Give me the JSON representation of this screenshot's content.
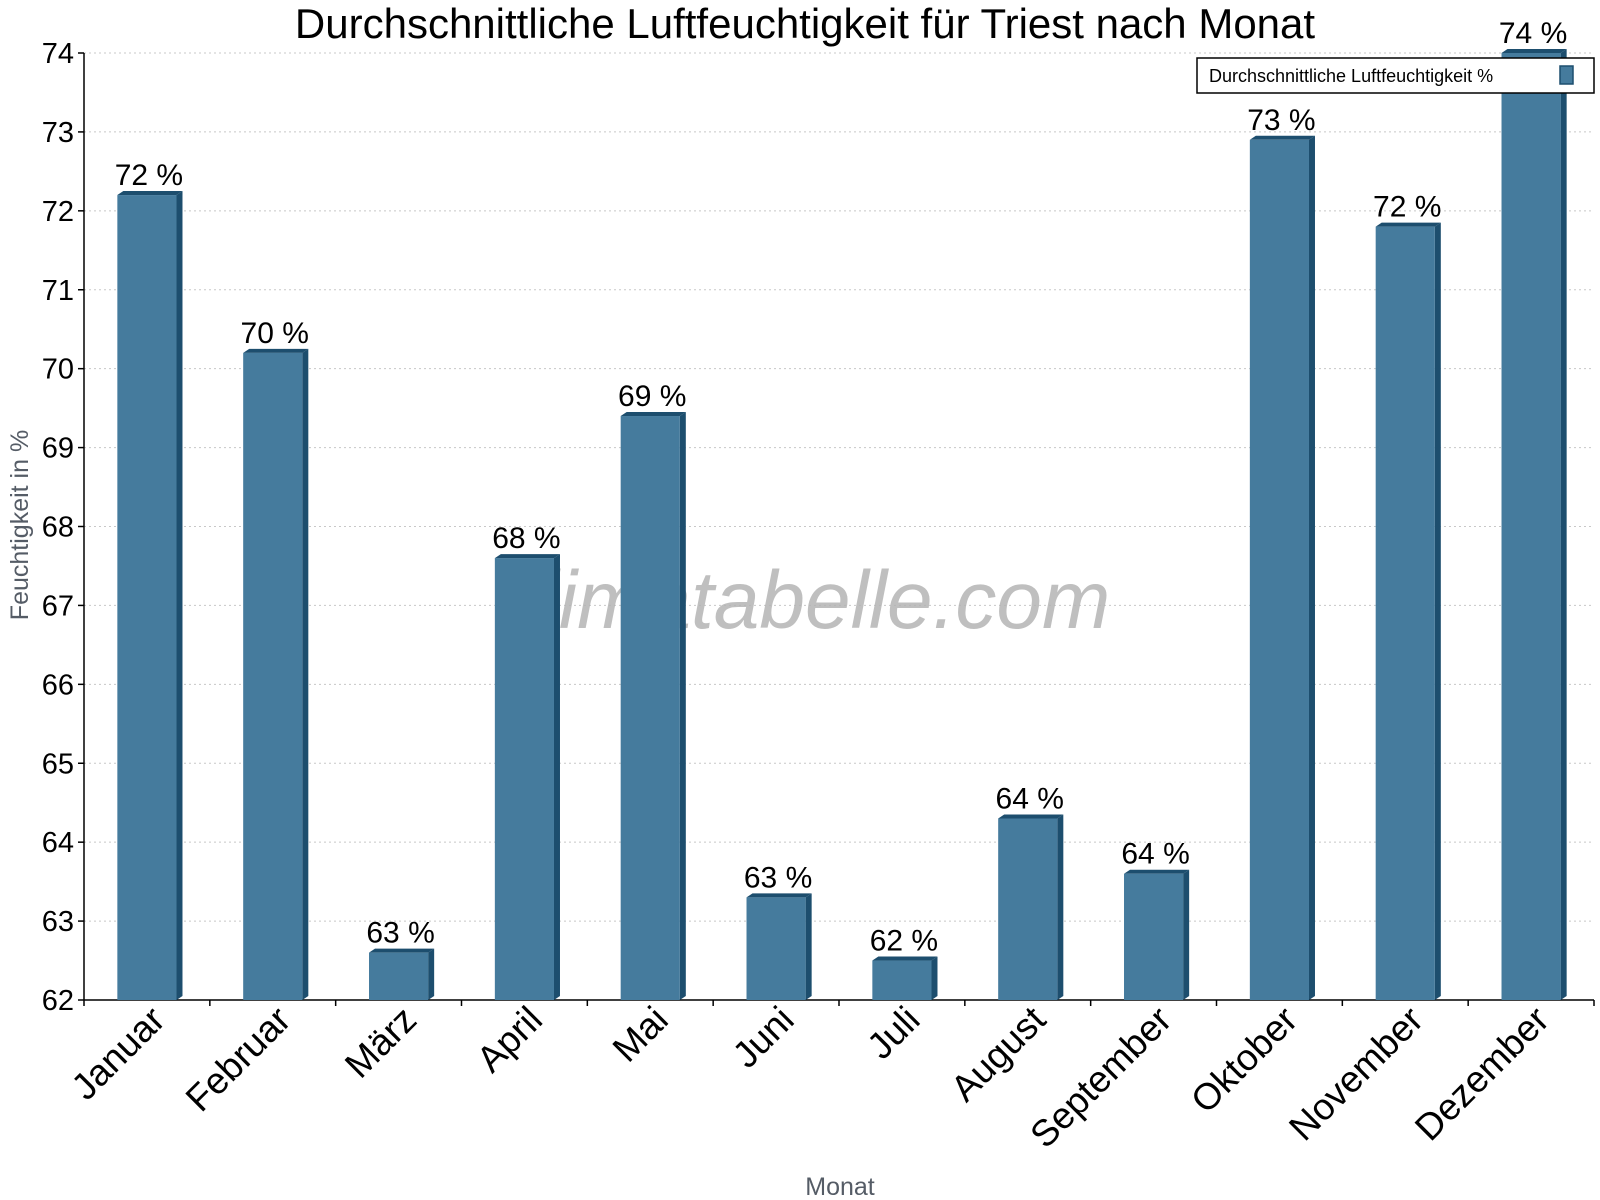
{
  "chart_data": {
    "type": "bar",
    "title": "Durchschnittliche Luftfeuchtigkeit für Triest nach Monat",
    "xlabel": "Monat",
    "ylabel": "Feuchtigkeit in %",
    "ylim": [
      62,
      74
    ],
    "yticks": [
      62,
      63,
      64,
      65,
      66,
      67,
      68,
      69,
      70,
      71,
      72,
      73,
      74
    ],
    "grid": true,
    "legend_placement": "top-right",
    "categories": [
      "Januar",
      "Februar",
      "März",
      "April",
      "Mai",
      "Juni",
      "Juli",
      "August",
      "September",
      "Oktober",
      "November",
      "Dezember"
    ],
    "series": [
      {
        "name": "Durchschnittliche Luftfeuchtigkeit %",
        "values": [
          72.2,
          70.2,
          62.6,
          67.6,
          69.4,
          63.3,
          62.5,
          64.3,
          63.6,
          72.9,
          71.8,
          74.0
        ],
        "labels": [
          "72 %",
          "70 %",
          "63 %",
          "68 %",
          "69 %",
          "63 %",
          "62 %",
          "64 %",
          "64 %",
          "73 %",
          "72 %",
          "74 %"
        ],
        "color": "#457b9d",
        "edge_color": "#1d4e6e"
      }
    ],
    "watermark": "klimatabelle.com"
  }
}
